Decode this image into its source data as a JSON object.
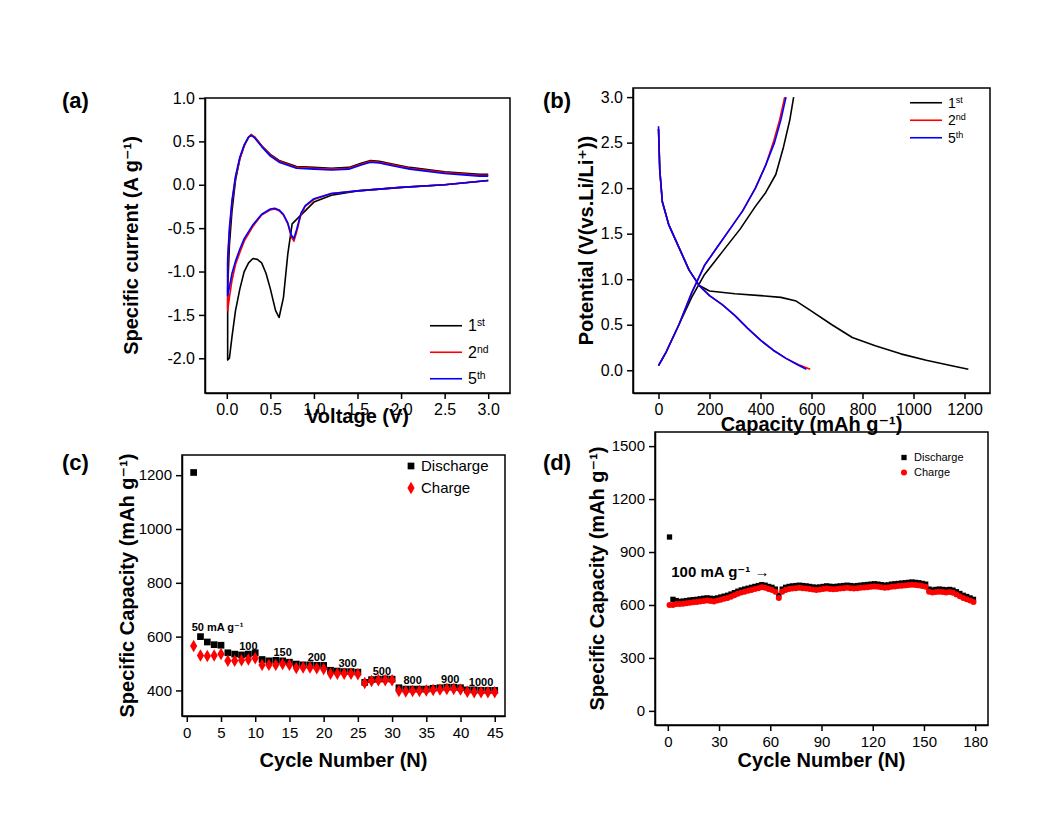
{
  "chart_data": [
    {
      "type": "line",
      "label": "(a)",
      "x_label": "Voltage (V)",
      "y_label": "Specific current (A g⁻¹)",
      "xlim": [
        -0.25,
        3.25
      ],
      "ylim": [
        -2.4,
        1.0
      ],
      "xticks": [
        {
          "value": 0,
          "label": "0.0"
        },
        0.5,
        {
          "value": 1,
          "label": "1.0"
        },
        1.5,
        {
          "value": 2,
          "label": "2.0"
        },
        2.5,
        {
          "value": 3,
          "label": "3.0"
        }
      ],
      "yticks": [
        {
          "value": -2,
          "label": "-2.0"
        },
        -1.5,
        {
          "value": -1,
          "label": "-1.0"
        },
        -0.5,
        {
          "value": 0,
          "label": "0.0"
        },
        0.5,
        {
          "value": 1,
          "label": "1.0"
        }
      ],
      "legend": "lower right",
      "series": [
        {
          "name": "1st",
          "color": "#000000",
          "line_style": "solid",
          "x": [
            3.0,
            2.5,
            2.0,
            1.5,
            1.2,
            1.0,
            0.85,
            0.75,
            0.7,
            0.65,
            0.6,
            0.56,
            0.5,
            0.45,
            0.4,
            0.35,
            0.3,
            0.25,
            0.2,
            0.15,
            0.1,
            0.06,
            0.03,
            0.01,
            0.01,
            0.03,
            0.06,
            0.1,
            0.15,
            0.2,
            0.25,
            0.28,
            0.32,
            0.4,
            0.5,
            0.6,
            0.8,
            1.0,
            1.2,
            1.4,
            1.55,
            1.65,
            1.75,
            1.9,
            2.1,
            2.5,
            2.9,
            3.0
          ],
          "values": [
            0.05,
            0.0,
            -0.03,
            -0.07,
            -0.12,
            -0.2,
            -0.35,
            -0.45,
            -0.8,
            -1.3,
            -1.53,
            -1.45,
            -1.2,
            -1.02,
            -0.9,
            -0.86,
            -0.85,
            -0.9,
            -1.0,
            -1.2,
            -1.45,
            -1.75,
            -2.0,
            -2.02,
            -1.2,
            -0.7,
            -0.3,
            0.05,
            0.3,
            0.45,
            0.55,
            0.57,
            0.55,
            0.45,
            0.35,
            0.28,
            0.21,
            0.2,
            0.19,
            0.2,
            0.25,
            0.28,
            0.27,
            0.24,
            0.2,
            0.15,
            0.12,
            0.12
          ]
        },
        {
          "name": "2nd",
          "color": "#ff0000",
          "line_style": "solid",
          "x": [
            3.0,
            2.5,
            2.0,
            1.5,
            1.2,
            1.0,
            0.9,
            0.85,
            0.8,
            0.77,
            0.74,
            0.7,
            0.65,
            0.6,
            0.55,
            0.5,
            0.4,
            0.3,
            0.2,
            0.15,
            0.1,
            0.06,
            0.03,
            0.01,
            0.01,
            0.03,
            0.06,
            0.1,
            0.15,
            0.2,
            0.25,
            0.28,
            0.32,
            0.4,
            0.5,
            0.6,
            0.8,
            1.0,
            1.2,
            1.4,
            1.55,
            1.65,
            1.75,
            1.9,
            2.1,
            2.5,
            2.9,
            3.0
          ],
          "values": [
            0.05,
            0.0,
            -0.03,
            -0.07,
            -0.1,
            -0.17,
            -0.25,
            -0.35,
            -0.55,
            -0.65,
            -0.6,
            -0.45,
            -0.35,
            -0.3,
            -0.28,
            -0.29,
            -0.35,
            -0.48,
            -0.65,
            -0.78,
            -0.92,
            -1.1,
            -1.3,
            -1.45,
            -0.9,
            -0.55,
            -0.2,
            0.08,
            0.3,
            0.45,
            0.55,
            0.58,
            0.55,
            0.45,
            0.34,
            0.27,
            0.2,
            0.19,
            0.18,
            0.19,
            0.24,
            0.27,
            0.26,
            0.23,
            0.19,
            0.14,
            0.11,
            0.11
          ]
        },
        {
          "name": "5th",
          "color": "#0000ff",
          "line_style": "solid",
          "x": [
            3.0,
            2.5,
            2.0,
            1.5,
            1.2,
            1.0,
            0.9,
            0.85,
            0.8,
            0.77,
            0.74,
            0.7,
            0.65,
            0.6,
            0.55,
            0.5,
            0.4,
            0.3,
            0.2,
            0.15,
            0.1,
            0.06,
            0.03,
            0.01,
            0.01,
            0.03,
            0.06,
            0.1,
            0.15,
            0.2,
            0.25,
            0.28,
            0.32,
            0.4,
            0.5,
            0.6,
            0.8,
            1.0,
            1.2,
            1.4,
            1.55,
            1.65,
            1.75,
            1.9,
            2.1,
            2.5,
            2.9,
            3.0
          ],
          "values": [
            0.05,
            0.0,
            -0.03,
            -0.07,
            -0.1,
            -0.16,
            -0.24,
            -0.33,
            -0.52,
            -0.62,
            -0.58,
            -0.44,
            -0.34,
            -0.29,
            -0.27,
            -0.28,
            -0.34,
            -0.46,
            -0.62,
            -0.74,
            -0.88,
            -1.02,
            -1.18,
            -1.28,
            -0.85,
            -0.5,
            -0.18,
            0.1,
            0.32,
            0.46,
            0.55,
            0.57,
            0.54,
            0.44,
            0.33,
            0.26,
            0.19,
            0.18,
            0.17,
            0.18,
            0.23,
            0.26,
            0.25,
            0.22,
            0.18,
            0.13,
            0.1,
            0.1
          ]
        }
      ]
    },
    {
      "type": "line",
      "label": "(b)",
      "x_label": "Capacity (mAh g⁻¹)",
      "y_label": "Potential (V(vs.Li/Li⁺))",
      "xlim": [
        -100,
        1300
      ],
      "ylim": [
        -0.25,
        3.1
      ],
      "xticks": [
        0,
        200,
        400,
        600,
        800,
        1000,
        1200
      ],
      "yticks": [
        {
          "value": 0,
          "label": "0.0"
        },
        0.5,
        {
          "value": 1,
          "label": "1.0"
        },
        1.5,
        {
          "value": 2,
          "label": "2.0"
        },
        2.5,
        {
          "value": 3,
          "label": "3.0"
        }
      ],
      "legend": "upper right",
      "series": [
        {
          "name": "1st",
          "color": "#000000",
          "line_style": "solid",
          "x": [
            0,
            5,
            15,
            40,
            80,
            120,
            160,
            200,
            300,
            400,
            480,
            540,
            600,
            680,
            760,
            850,
            950,
            1050,
            1150,
            1215,
            null,
            0,
            30,
            80,
            130,
            180,
            250,
            320,
            380,
            420,
            460,
            490,
            515,
            530
          ],
          "values": [
            2.65,
            2.2,
            1.85,
            1.6,
            1.35,
            1.1,
            0.93,
            0.87,
            0.84,
            0.82,
            0.8,
            0.76,
            0.65,
            0.5,
            0.36,
            0.27,
            0.18,
            0.11,
            0.05,
            0.01,
            null,
            0.05,
            0.2,
            0.5,
            0.8,
            1.05,
            1.3,
            1.55,
            1.8,
            1.95,
            2.15,
            2.45,
            2.75,
            3.0
          ]
        },
        {
          "name": "2nd",
          "color": "#ff0000",
          "line_style": "solid",
          "x": [
            0,
            5,
            15,
            40,
            80,
            120,
            160,
            200,
            250,
            300,
            350,
            400,
            450,
            500,
            550,
            595,
            null,
            0,
            30,
            80,
            130,
            180,
            230,
            280,
            330,
            380,
            420,
            450,
            475,
            495
          ],
          "values": [
            2.65,
            2.2,
            1.85,
            1.6,
            1.35,
            1.1,
            0.93,
            0.82,
            0.72,
            0.6,
            0.46,
            0.33,
            0.22,
            0.13,
            0.06,
            0.01,
            null,
            0.05,
            0.2,
            0.5,
            0.85,
            1.15,
            1.35,
            1.55,
            1.75,
            2.0,
            2.25,
            2.5,
            2.75,
            3.0
          ]
        },
        {
          "name": "5th",
          "color": "#0000ff",
          "line_style": "solid",
          "x": [
            0,
            5,
            15,
            40,
            80,
            120,
            160,
            200,
            250,
            300,
            350,
            400,
            450,
            500,
            545,
            580,
            null,
            0,
            30,
            80,
            130,
            180,
            230,
            280,
            330,
            380,
            420,
            455,
            480,
            500
          ],
          "values": [
            2.68,
            2.2,
            1.85,
            1.6,
            1.35,
            1.1,
            0.93,
            0.82,
            0.72,
            0.6,
            0.46,
            0.33,
            0.22,
            0.13,
            0.06,
            0.01,
            null,
            0.05,
            0.2,
            0.5,
            0.85,
            1.15,
            1.35,
            1.55,
            1.75,
            2.0,
            2.25,
            2.5,
            2.75,
            3.0
          ]
        }
      ]
    },
    {
      "type": "scatter",
      "label": "(c)",
      "x_label": "Cycle Number (N)",
      "y_label": "Specific Capacity (mAh g⁻¹)",
      "xlim": [
        -0.7,
        46.5
      ],
      "ylim": [
        305,
        1275
      ],
      "xticks": [
        0,
        5,
        10,
        15,
        20,
        25,
        30,
        35,
        40,
        45
      ],
      "yticks": [
        400,
        600,
        800,
        1000,
        1200
      ],
      "legend": "upper right",
      "x": [
        1,
        2,
        3,
        4,
        5,
        6,
        7,
        8,
        9,
        10,
        11,
        12,
        13,
        14,
        15,
        16,
        17,
        18,
        19,
        20,
        21,
        22,
        23,
        24,
        25,
        26,
        27,
        28,
        29,
        30,
        31,
        32,
        33,
        34,
        35,
        36,
        37,
        38,
        39,
        40,
        41,
        42,
        43,
        44,
        45
      ],
      "series": [
        {
          "name": "Discharge",
          "color": "#000000",
          "marker": "square",
          "values": [
            1210,
            600,
            580,
            570,
            568,
            540,
            535,
            532,
            535,
            540,
            515,
            510,
            512,
            510,
            505,
            498,
            495,
            495,
            493,
            493,
            475,
            472,
            470,
            470,
            468,
            430,
            440,
            442,
            443,
            442,
            410,
            405,
            405,
            405,
            405,
            408,
            410,
            412,
            412,
            410,
            402,
            402,
            400,
            400,
            400
          ]
        },
        {
          "name": "Charge",
          "color": "#ff0000",
          "marker": "diamond",
          "values": [
            565,
            530,
            528,
            530,
            535,
            510,
            510,
            512,
            515,
            520,
            495,
            495,
            495,
            498,
            495,
            483,
            485,
            485,
            482,
            480,
            462,
            462,
            462,
            462,
            460,
            428,
            435,
            438,
            438,
            438,
            398,
            396,
            398,
            398,
            400,
            402,
            403,
            405,
            405,
            403,
            395,
            393,
            393,
            393,
            393
          ]
        }
      ],
      "annotations": [
        {
          "text": "50 mA g⁻¹",
          "x": 4.5,
          "y": 622
        },
        {
          "text": "100",
          "x": 9,
          "y": 552
        },
        {
          "text": "150",
          "x": 14,
          "y": 527
        },
        {
          "text": "200",
          "x": 19,
          "y": 510
        },
        {
          "text": "300",
          "x": 23.5,
          "y": 488
        },
        {
          "text": "500",
          "x": 28.5,
          "y": 457
        },
        {
          "text": "800",
          "x": 33,
          "y": 424
        },
        {
          "text": "900",
          "x": 38.5,
          "y": 428
        },
        {
          "text": "1000",
          "x": 43,
          "y": 418
        }
      ]
    },
    {
      "type": "scatter",
      "label": "(d)",
      "x_label": "Cycle Number (N)",
      "y_label": "Specific Capacity (mAh g⁻¹)",
      "xlim": [
        -7.5,
        187.5
      ],
      "ylim": [
        -80,
        1580
      ],
      "xticks": [
        0,
        30,
        60,
        90,
        120,
        150,
        180
      ],
      "yticks": [
        0,
        300,
        600,
        900,
        1200,
        1500
      ],
      "legend": "upper right",
      "x": [
        1,
        3,
        5,
        7,
        9,
        11,
        13,
        15,
        17,
        19,
        21,
        23,
        25,
        27,
        29,
        31,
        33,
        35,
        37,
        39,
        41,
        43,
        45,
        47,
        49,
        51,
        53,
        55,
        57,
        59,
        61,
        63,
        65,
        67,
        69,
        71,
        73,
        75,
        77,
        79,
        81,
        83,
        85,
        87,
        89,
        91,
        93,
        95,
        97,
        99,
        101,
        103,
        105,
        107,
        109,
        111,
        113,
        115,
        117,
        119,
        121,
        123,
        125,
        127,
        129,
        131,
        133,
        135,
        137,
        139,
        141,
        143,
        145,
        147,
        149,
        151,
        153,
        155,
        157,
        159,
        161,
        163,
        165,
        167,
        169,
        171,
        173,
        175,
        177,
        179
      ],
      "series": [
        {
          "name": "Discharge",
          "color": "#000000",
          "marker": "square",
          "values": [
            985,
            632,
            625,
            620,
            622,
            625,
            628,
            630,
            632,
            635,
            638,
            640,
            638,
            636,
            640,
            645,
            650,
            655,
            662,
            670,
            678,
            685,
            690,
            695,
            700,
            705,
            710,
            715,
            712,
            705,
            700,
            690,
            655,
            690,
            700,
            705,
            708,
            710,
            712,
            710,
            708,
            705,
            702,
            700,
            702,
            705,
            708,
            706,
            704,
            706,
            708,
            710,
            712,
            710,
            708,
            710,
            712,
            714,
            716,
            718,
            720,
            718,
            715,
            712,
            714,
            718,
            720,
            722,
            724,
            726,
            728,
            730,
            728,
            726,
            722,
            718,
            690,
            685,
            688,
            690,
            688,
            686,
            688,
            684,
            675,
            665,
            655,
            648,
            640,
            632
          ]
        },
        {
          "name": "Charge",
          "color": "#ff0000",
          "marker": "circle",
          "values": [
            600,
            600,
            605,
            605,
            607,
            610,
            612,
            615,
            617,
            620,
            622,
            625,
            623,
            620,
            625,
            630,
            635,
            640,
            647,
            655,
            663,
            670,
            675,
            680,
            685,
            690,
            695,
            700,
            697,
            690,
            685,
            675,
            640,
            675,
            685,
            690,
            693,
            695,
            697,
            695,
            693,
            690,
            687,
            685,
            687,
            690,
            693,
            691,
            689,
            691,
            693,
            695,
            697,
            695,
            693,
            695,
            697,
            699,
            701,
            703,
            705,
            703,
            700,
            697,
            699,
            703,
            705,
            707,
            709,
            711,
            713,
            715,
            713,
            711,
            707,
            703,
            675,
            670,
            673,
            675,
            673,
            671,
            673,
            669,
            660,
            650,
            640,
            633,
            625,
            617
          ]
        }
      ],
      "annotations": [
        {
          "text": "100 mA g⁻¹ →",
          "x": 2,
          "y": 760
        }
      ]
    }
  ]
}
